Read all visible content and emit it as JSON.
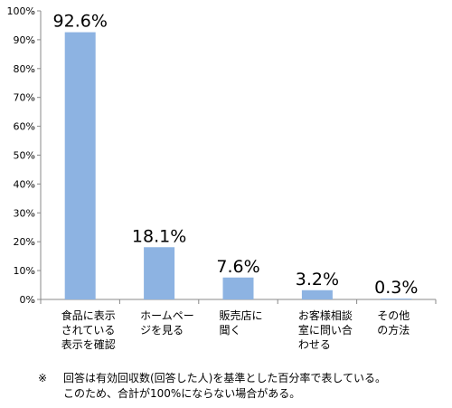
{
  "chart_data": {
    "type": "bar",
    "categories": [
      [
        "食品に表示",
        "されている",
        "表示を確認"
      ],
      [
        "ホームペー",
        "ジを見る"
      ],
      [
        "販売店に",
        "聞く"
      ],
      [
        "お客様相談",
        "室に問い合",
        "わせる"
      ],
      [
        "その他",
        "の方法"
      ]
    ],
    "values": [
      92.6,
      18.1,
      7.6,
      3.2,
      0.3
    ],
    "value_labels": [
      "92.6%",
      "18.1%",
      "7.6%",
      "3.2%",
      "0.3%"
    ],
    "ylim": [
      0,
      100
    ],
    "yticks": [
      "0%",
      "10%",
      "20%",
      "30%",
      "40%",
      "50%",
      "60%",
      "70%",
      "80%",
      "90%",
      "100%"
    ],
    "grid": false,
    "bar_color": "#8db3e2",
    "title": "",
    "xlabel": "",
    "ylabel": ""
  },
  "footnote": {
    "mark": "※",
    "line1": "回答は有効回収数(回答した人)を基準とした百分率で表している。",
    "line2": "このため、合計が100%にならない場合がある。"
  }
}
